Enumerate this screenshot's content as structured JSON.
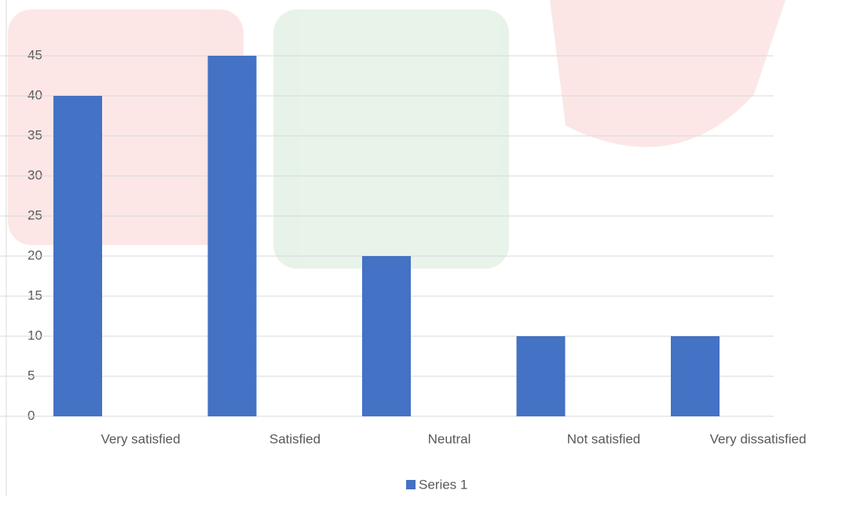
{
  "chart_data": {
    "type": "bar",
    "categories": [
      "Very satisfied",
      "Satisfied",
      "Neutral",
      "Not satisfied",
      "Very dissatisfied"
    ],
    "series": [
      {
        "name": "Series 1",
        "color": "#4472c4",
        "values": [
          40,
          45,
          20,
          10,
          10
        ]
      }
    ],
    "ylim": [
      0,
      50
    ],
    "yticks": [
      0,
      5,
      10,
      15,
      20,
      25,
      30,
      35,
      40,
      45
    ],
    "grid": true,
    "legend": "bottom"
  }
}
